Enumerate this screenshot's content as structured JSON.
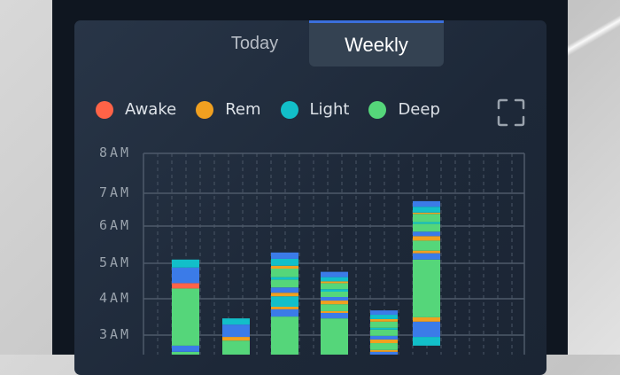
{
  "tabs": [
    {
      "label": "Today",
      "active": false
    },
    {
      "label": "Weekly",
      "active": true
    }
  ],
  "legend": [
    {
      "label": "Awake",
      "stage": "awake",
      "color": "#ff6347"
    },
    {
      "label": "Rem",
      "stage": "rem",
      "color": "#f0a020"
    },
    {
      "label": "Light",
      "stage": "light",
      "color": "#12bfc9"
    },
    {
      "label": "Deep",
      "stage": "deep",
      "color": "#55d67a"
    }
  ],
  "icons": {
    "expand": "fullscreen-icon"
  },
  "colors": {
    "unlabeled": "#3b7be8",
    "accent": "#3b6fdc"
  },
  "chart_data": {
    "type": "bar",
    "stacked": true,
    "y_tick_labels": [
      "8AM",
      "7AM",
      "6AM",
      "5AM",
      "4AM",
      "3AM"
    ],
    "y_ticks": [
      8,
      7,
      6,
      5,
      4,
      3
    ],
    "ylim_visible": [
      2.5,
      8
    ],
    "grid": true,
    "legend_placement": "top",
    "bars": [
      {
        "segments": [
          [
            "deep",
            2.0,
            2.54
          ],
          [
            "unlabeled",
            2.54,
            2.71
          ],
          [
            "deep",
            2.71,
            4.29
          ],
          [
            "awake",
            4.29,
            4.44
          ],
          [
            "unlabeled",
            4.44,
            4.88
          ],
          [
            "light",
            4.88,
            5.1
          ]
        ]
      },
      {
        "segments": [
          [
            "deep",
            2.0,
            2.85
          ],
          [
            "rem",
            2.85,
            2.95
          ],
          [
            "unlabeled",
            2.95,
            3.29
          ],
          [
            "light",
            3.29,
            3.46
          ]
        ]
      },
      {
        "segments": [
          [
            "deep",
            2.0,
            3.51
          ],
          [
            "unlabeled",
            3.51,
            3.71
          ],
          [
            "rem",
            3.71,
            3.78
          ],
          [
            "light",
            3.78,
            4.07
          ],
          [
            "rem",
            4.07,
            4.17
          ],
          [
            "unlabeled",
            4.17,
            4.32
          ],
          [
            "deep",
            4.32,
            4.54
          ],
          [
            "light",
            4.54,
            4.61
          ],
          [
            "deep",
            4.61,
            4.85
          ],
          [
            "rem",
            4.85,
            4.93
          ],
          [
            "light",
            4.93,
            5.12
          ],
          [
            "unlabeled",
            5.12,
            5.29
          ]
        ]
      },
      {
        "segments": [
          [
            "deep",
            2.0,
            3.46
          ],
          [
            "unlabeled",
            3.46,
            3.61
          ],
          [
            "rem",
            3.61,
            3.66
          ],
          [
            "deep",
            3.66,
            3.85
          ],
          [
            "rem",
            3.85,
            3.95
          ],
          [
            "unlabeled",
            3.95,
            4.05
          ],
          [
            "deep",
            4.05,
            4.2
          ],
          [
            "light",
            4.2,
            4.27
          ],
          [
            "deep",
            4.27,
            4.44
          ],
          [
            "rem",
            4.44,
            4.49
          ],
          [
            "light",
            4.49,
            4.61
          ],
          [
            "unlabeled",
            4.61,
            4.76
          ]
        ]
      },
      {
        "segments": [
          [
            "unlabeled",
            2.0,
            2.54
          ],
          [
            "rem",
            2.54,
            2.59
          ],
          [
            "deep",
            2.59,
            2.78
          ],
          [
            "rem",
            2.78,
            2.88
          ],
          [
            "unlabeled",
            2.88,
            2.98
          ],
          [
            "deep",
            2.98,
            3.15
          ],
          [
            "light",
            3.15,
            3.2
          ],
          [
            "deep",
            3.2,
            3.37
          ],
          [
            "rem",
            3.37,
            3.44
          ],
          [
            "light",
            3.44,
            3.56
          ],
          [
            "unlabeled",
            3.56,
            3.68
          ]
        ]
      },
      {
        "segments": [
          [
            "light",
            2.71,
            2.95
          ],
          [
            "unlabeled",
            2.95,
            3.37
          ],
          [
            "rem",
            3.37,
            3.49
          ],
          [
            "deep",
            3.49,
            5.1
          ],
          [
            "unlabeled",
            5.1,
            5.27
          ],
          [
            "rem",
            5.27,
            5.34
          ],
          [
            "deep",
            5.34,
            5.61
          ],
          [
            "rem",
            5.61,
            5.73
          ],
          [
            "unlabeled",
            5.73,
            5.85
          ],
          [
            "deep",
            5.85,
            6.07
          ],
          [
            "light",
            6.07,
            6.12
          ],
          [
            "deep",
            6.12,
            6.37
          ],
          [
            "rem",
            6.37,
            6.41
          ],
          [
            "light",
            6.41,
            6.59
          ],
          [
            "unlabeled",
            6.59,
            6.76
          ]
        ]
      }
    ]
  }
}
